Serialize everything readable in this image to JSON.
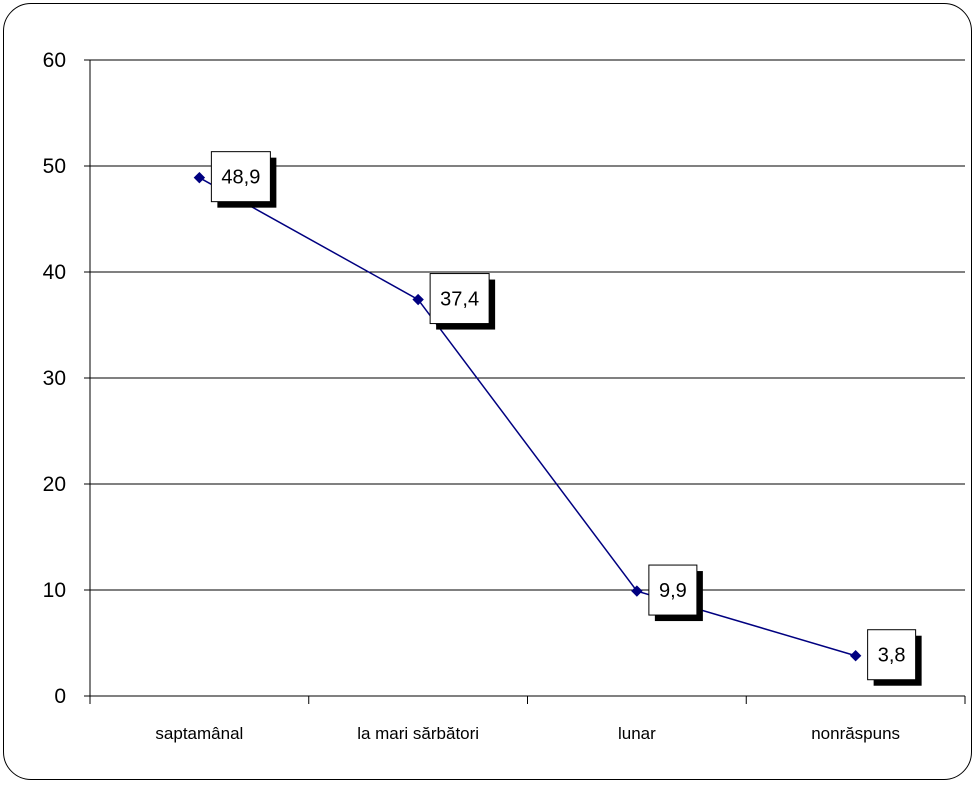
{
  "chart_data": {
    "type": "line",
    "categories": [
      "saptamânal",
      "la mari sărbători",
      "lunar",
      "nonrăspuns"
    ],
    "series": [
      {
        "values": [
          48.9,
          37.4,
          9.9,
          3.8
        ],
        "data_labels": [
          "48,9",
          "37,4",
          "9,9",
          "3,8"
        ],
        "color": "#000080",
        "marker": "diamond"
      }
    ],
    "title": "",
    "xlabel": "",
    "ylabel": "",
    "ylim": [
      0,
      60
    ],
    "yticks": [
      0,
      10,
      20,
      30,
      40,
      50,
      60
    ],
    "ytick_labels": [
      "0",
      "10",
      "20",
      "30",
      "40",
      "50",
      "60"
    ],
    "grid": "horizontal",
    "legend": "none",
    "colors": {
      "line": "#000080",
      "grid": "#000000",
      "frame": "#000000",
      "label_box": "#ffffff",
      "label_shadow": "#000000"
    }
  }
}
